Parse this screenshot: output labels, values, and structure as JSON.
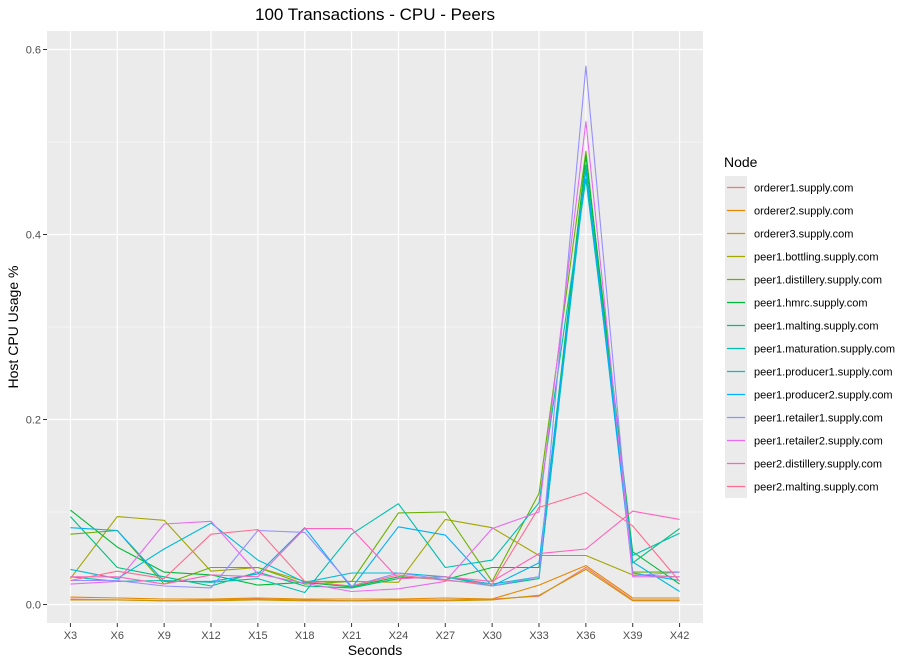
{
  "chart_data": {
    "type": "line",
    "title": "100 Transactions - CPU - Peers",
    "xlabel": "Seconds",
    "ylabel": "Host CPU Usage %",
    "categories": [
      "X3",
      "X6",
      "X9",
      "X12",
      "X15",
      "X18",
      "X21",
      "X24",
      "X27",
      "X30",
      "X33",
      "X36",
      "X39",
      "X42"
    ],
    "ylim": [
      -0.02,
      0.62
    ],
    "yticks": [
      0.0,
      0.2,
      0.4,
      0.6
    ],
    "ytick_labels": [
      "0.0",
      "0.2",
      "0.4",
      "0.6"
    ],
    "grid": true,
    "legend": {
      "title": "Node",
      "position": "right"
    },
    "series": [
      {
        "name": "orderer1.supply.com",
        "color": "#F8766D",
        "values": [
          0.006,
          0.005,
          0.004,
          0.005,
          0.006,
          0.005,
          0.004,
          0.005,
          0.005,
          0.006,
          0.009,
          0.04,
          0.005,
          0.005
        ]
      },
      {
        "name": "orderer2.supply.com",
        "color": "#E58700",
        "values": [
          0.008,
          0.007,
          0.006,
          0.006,
          0.007,
          0.006,
          0.006,
          0.006,
          0.007,
          0.006,
          0.021,
          0.042,
          0.007,
          0.007
        ]
      },
      {
        "name": "orderer3.supply.com",
        "color": "#C99800",
        "values": [
          0.005,
          0.005,
          0.004,
          0.004,
          0.005,
          0.004,
          0.004,
          0.004,
          0.004,
          0.005,
          0.01,
          0.038,
          0.004,
          0.004
        ]
      },
      {
        "name": "peer1.bottling.supply.com",
        "color": "#A3A500",
        "values": [
          0.028,
          0.095,
          0.091,
          0.036,
          0.04,
          0.025,
          0.025,
          0.024,
          0.092,
          0.083,
          0.053,
          0.053,
          0.032,
          0.03
        ]
      },
      {
        "name": "peer1.distillery.supply.com",
        "color": "#6BB100",
        "values": [
          0.076,
          0.08,
          0.022,
          0.04,
          0.04,
          0.022,
          0.025,
          0.099,
          0.1,
          0.025,
          0.12,
          0.49,
          0.035,
          0.035
        ]
      },
      {
        "name": "peer1.hmrc.supply.com",
        "color": "#00BA38",
        "values": [
          0.102,
          0.062,
          0.035,
          0.032,
          0.021,
          0.024,
          0.019,
          0.03,
          0.027,
          0.04,
          0.04,
          0.485,
          0.057,
          0.022
        ]
      },
      {
        "name": "peer1.malting.supply.com",
        "color": "#00BF7D",
        "values": [
          0.095,
          0.04,
          0.03,
          0.02,
          0.035,
          0.02,
          0.018,
          0.028,
          0.03,
          0.02,
          0.028,
          0.475,
          0.045,
          0.082
        ]
      },
      {
        "name": "peer1.maturation.supply.com",
        "color": "#00C0AF",
        "values": [
          0.03,
          0.025,
          0.026,
          0.024,
          0.028,
          0.013,
          0.076,
          0.109,
          0.04,
          0.048,
          0.11,
          0.46,
          0.053,
          0.077
        ]
      },
      {
        "name": "peer1.producer1.supply.com",
        "color": "#00BCD8",
        "values": [
          0.038,
          0.028,
          0.06,
          0.088,
          0.048,
          0.024,
          0.034,
          0.034,
          0.03,
          0.022,
          0.03,
          0.47,
          0.046,
          0.014
        ]
      },
      {
        "name": "peer1.producer2.supply.com",
        "color": "#00B0F6",
        "values": [
          0.083,
          0.08,
          0.025,
          0.025,
          0.033,
          0.083,
          0.018,
          0.084,
          0.075,
          0.02,
          0.045,
          0.47,
          0.034,
          0.026
        ]
      },
      {
        "name": "peer1.retailer1.supply.com",
        "color": "#9590FF",
        "values": [
          0.026,
          0.026,
          0.02,
          0.018,
          0.08,
          0.078,
          0.02,
          0.034,
          0.027,
          0.02,
          0.03,
          0.582,
          0.031,
          0.035
        ]
      },
      {
        "name": "peer1.retailer2.supply.com",
        "color": "#E76BF3",
        "values": [
          0.022,
          0.025,
          0.087,
          0.09,
          0.033,
          0.023,
          0.014,
          0.017,
          0.025,
          0.082,
          0.1,
          0.522,
          0.03,
          0.03
        ]
      },
      {
        "name": "peer2.distillery.supply.com",
        "color": "#FF62BC",
        "values": [
          0.03,
          0.03,
          0.022,
          0.032,
          0.03,
          0.082,
          0.082,
          0.028,
          0.03,
          0.025,
          0.055,
          0.06,
          0.101,
          0.092
        ]
      },
      {
        "name": "peer2.malting.supply.com",
        "color": "#FF6C91",
        "values": [
          0.026,
          0.036,
          0.028,
          0.076,
          0.081,
          0.025,
          0.02,
          0.032,
          0.026,
          0.022,
          0.105,
          0.121,
          0.085,
          0.025
        ]
      }
    ]
  }
}
